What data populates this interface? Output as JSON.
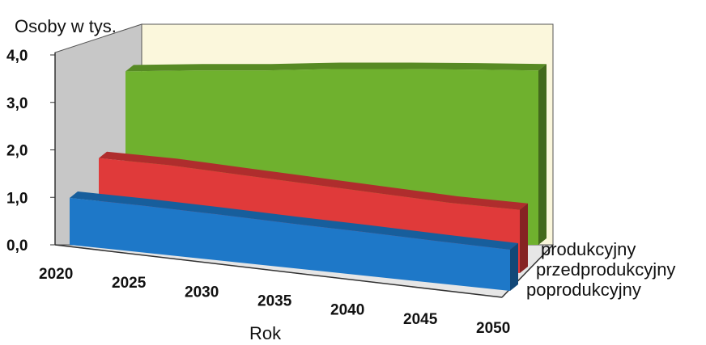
{
  "chart_data": {
    "type": "area",
    "style": "3d",
    "ylabel": "Osoby w tys.",
    "xlabel": "Rok",
    "ylim": [
      0,
      4
    ],
    "y_ticks": [
      "4,0",
      "3,0",
      "2,0",
      "1,0",
      "0,0"
    ],
    "categories": [
      "2020",
      "2025",
      "2030",
      "2035",
      "2040",
      "2045",
      "2050"
    ],
    "series": [
      {
        "name": "produkcyjny",
        "color": "#6FB12E",
        "values": [
          3.7,
          3.72,
          3.72,
          3.75,
          3.75,
          3.74,
          3.72
        ]
      },
      {
        "name": "przedprodukcyjny",
        "color": "#E03A3A",
        "values": [
          1.85,
          1.8,
          1.7,
          1.6,
          1.5,
          1.4,
          1.35
        ]
      },
      {
        "name": "poprodukcyjny",
        "color": "#1E78C8",
        "values": [
          1.0,
          1.0,
          0.98,
          0.95,
          0.93,
          0.9,
          0.88
        ]
      }
    ],
    "grid": false,
    "legend": "right, series labels on depth axis"
  }
}
